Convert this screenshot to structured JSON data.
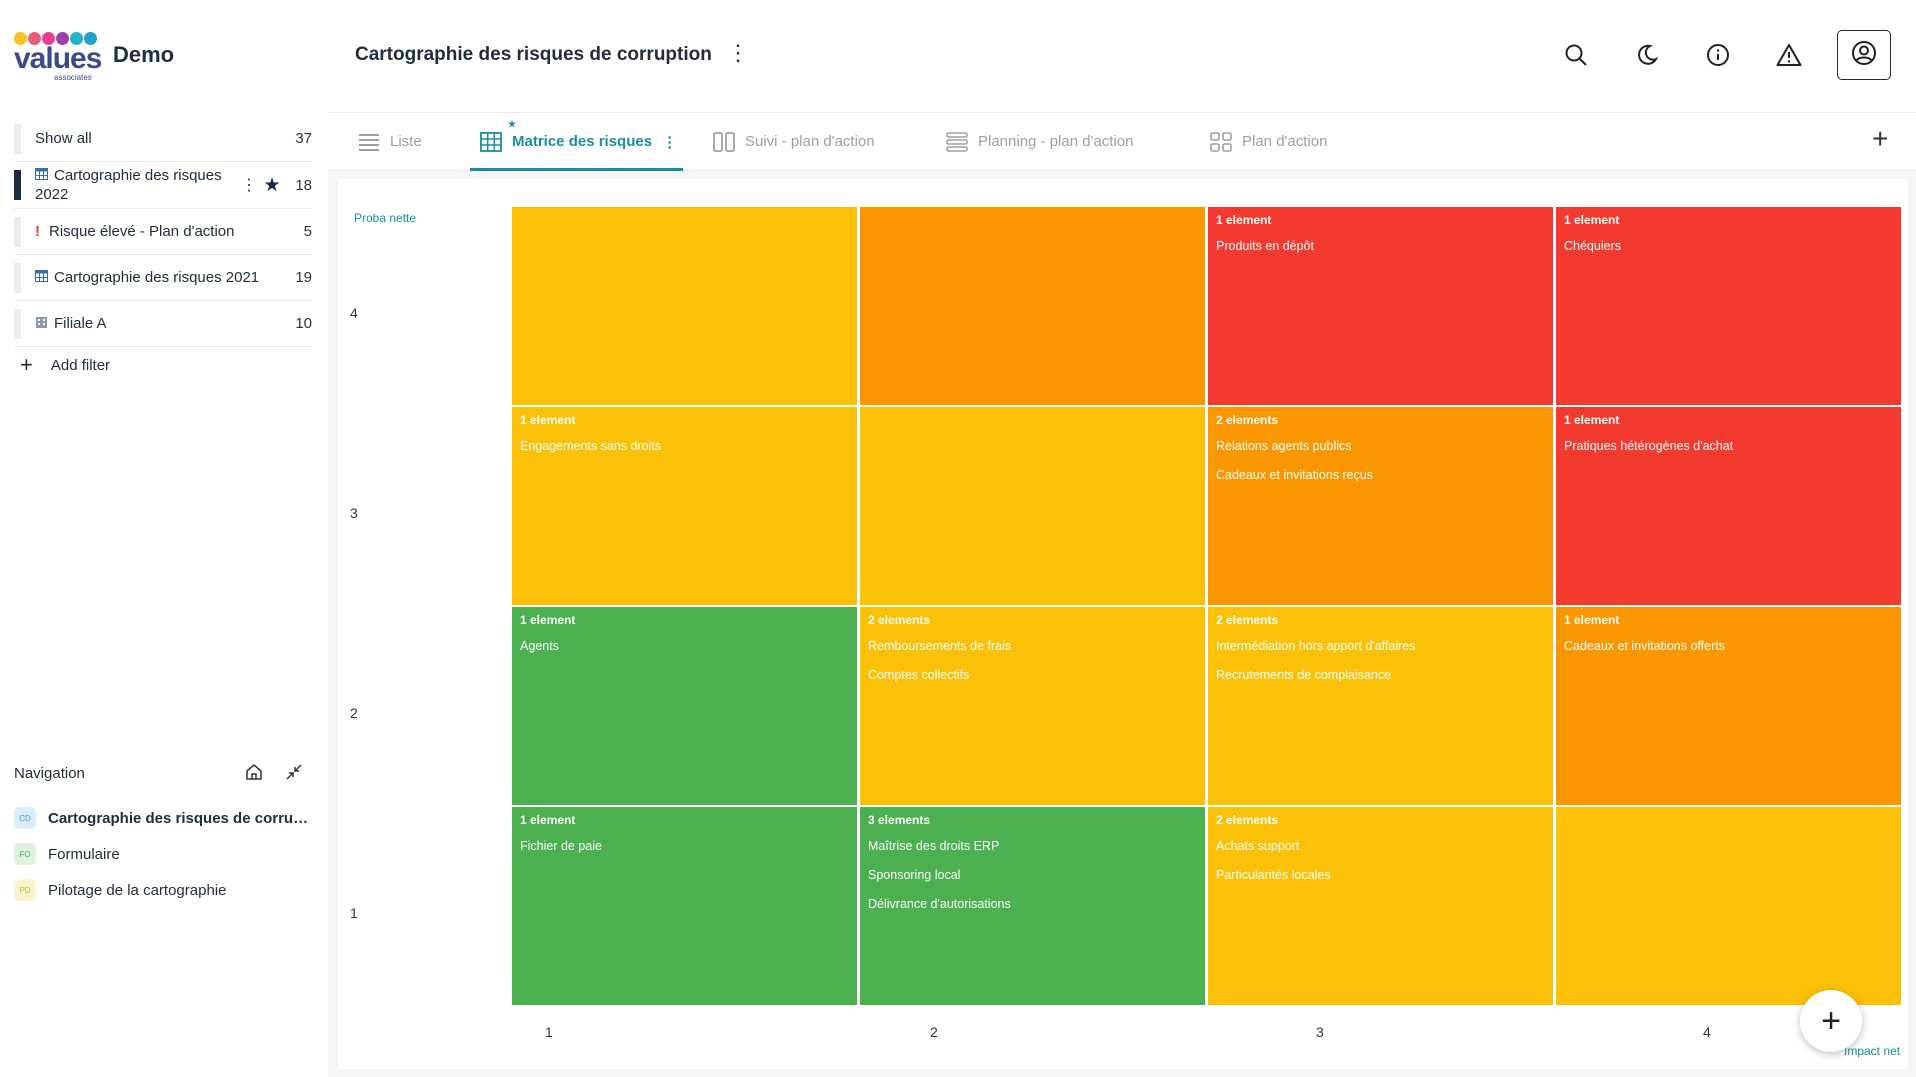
{
  "app": {
    "name": "Demo",
    "logo_word": "values",
    "logo_sub": "associates"
  },
  "sidebar": {
    "filters": [
      {
        "label": "Show all",
        "count": "37",
        "icon": "",
        "active": false
      },
      {
        "label": "Cartographie des risques 2022",
        "count": "18",
        "icon": "table-icon",
        "active": true,
        "starred": true
      },
      {
        "label": "Risque élevé - Plan d'action",
        "count": "5",
        "icon": "exclamation-icon",
        "active": false
      },
      {
        "label": "Cartographie des risques 2021",
        "count": "19",
        "icon": "table-icon",
        "active": false
      },
      {
        "label": "Filiale A",
        "count": "10",
        "icon": "building-icon",
        "active": false
      }
    ],
    "add_filter": "Add filter",
    "navigation_title": "Navigation",
    "nav_items": [
      {
        "badge": "CD",
        "label": "Cartographie des risques de corruption",
        "badge_bg": "#dbeefb",
        "badge_fg": "#3aa0d8"
      },
      {
        "badge": "FO",
        "label": "Formulaire",
        "badge_bg": "#dff2df",
        "badge_fg": "#4caf50"
      },
      {
        "badge": "PD",
        "label": "Pilotage de la cartographie",
        "badge_bg": "#f7f4d0",
        "badge_fg": "#c9b830"
      }
    ]
  },
  "header": {
    "title": "Cartographie des risques de corruption"
  },
  "tabs": [
    {
      "label": "Liste",
      "icon": "list-icon"
    },
    {
      "label": "Matrice des risques",
      "icon": "grid-icon",
      "active": true
    },
    {
      "label": "Suivi - plan d'action",
      "icon": "kanban-icon"
    },
    {
      "label": "Planning - plan d'action",
      "icon": "gantt-icon"
    },
    {
      "label": "Plan d'action",
      "icon": "board-icon"
    }
  ],
  "matrix": {
    "y_title": "Proba nette",
    "x_title": "Impact net",
    "y_ticks": [
      "4",
      "3",
      "2",
      "1"
    ],
    "x_ticks": [
      "1",
      "2",
      "3",
      "4"
    ],
    "colors": {
      "green": "#4caf50",
      "yellow": "#fbc108",
      "orange": "#fa9600",
      "red": "#f23b2e"
    },
    "rows": [
      [
        {
          "color": "yellow",
          "count": "",
          "items": []
        },
        {
          "color": "orange",
          "count": "",
          "items": []
        },
        {
          "color": "red",
          "count": "1 element",
          "items": [
            "Produits en dépôt"
          ]
        },
        {
          "color": "red",
          "count": "1 element",
          "items": [
            "Chéquiers"
          ]
        }
      ],
      [
        {
          "color": "yellow",
          "count": "1 element",
          "items": [
            "Engagements sans droits"
          ]
        },
        {
          "color": "yellow",
          "count": "",
          "items": []
        },
        {
          "color": "orange",
          "count": "2 elements",
          "items": [
            "Relations agents publics",
            "Cadeaux et invitations reçus"
          ]
        },
        {
          "color": "red",
          "count": "1 element",
          "items": [
            "Pratiques hétérogènes d'achat"
          ]
        }
      ],
      [
        {
          "color": "green",
          "count": "1 element",
          "items": [
            "Agents"
          ]
        },
        {
          "color": "yellow",
          "count": "2 elements",
          "items": [
            "Remboursements de frais",
            "Comptes collectifs"
          ]
        },
        {
          "color": "yellow",
          "count": "2 elements",
          "items": [
            "Intermédiation hors apport d'affaires",
            "Recrutements de complaisance"
          ]
        },
        {
          "color": "orange",
          "count": "1 element",
          "items": [
            "Cadeaux et invitations offerts"
          ]
        }
      ],
      [
        {
          "color": "green",
          "count": "1 element",
          "items": [
            "Fichier de paie"
          ]
        },
        {
          "color": "green",
          "count": "3 elements",
          "items": [
            "Maîtrise des droits ERP",
            "Sponsoring local",
            "Délivrance d'autorisations"
          ]
        },
        {
          "color": "yellow",
          "count": "2 elements",
          "items": [
            "Achats support",
            "Particularités locales"
          ]
        },
        {
          "color": "yellow",
          "count": "",
          "items": []
        }
      ]
    ]
  }
}
